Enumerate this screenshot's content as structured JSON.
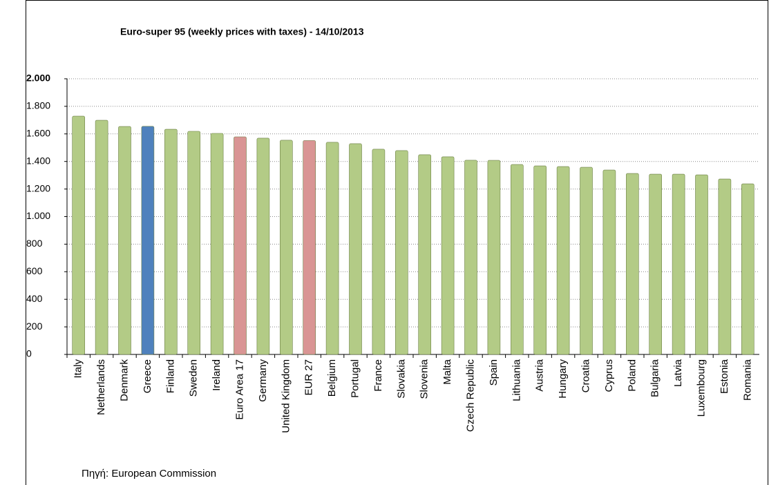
{
  "chart_data": {
    "type": "bar",
    "title": "Euro-super 95 (weekly prices with taxes) - 14/10/2013",
    "source": "Πηγή: European Commission",
    "categories": [
      "Italy",
      "Netherlands",
      "Denmark",
      "Greece",
      "Finland",
      "Sweden",
      "Ireland",
      "Euro Area 17",
      "Germany",
      "United Kingdom",
      "EUR 27",
      "Belgium",
      "Portugal",
      "France",
      "Slovakia",
      "Slovenia",
      "Malta",
      "Czech Republic",
      "Spain",
      "Lithuania",
      "Austria",
      "Hungary",
      "Croatia",
      "Cyprus",
      "Poland",
      "Bulgaria",
      "Latvia",
      "Luxembourg",
      "Estonia",
      "Romania"
    ],
    "values": [
      1729,
      1699,
      1654,
      1655,
      1634,
      1619,
      1604,
      1579,
      1569,
      1554,
      1552,
      1539,
      1529,
      1489,
      1479,
      1449,
      1434,
      1409,
      1408,
      1378,
      1368,
      1363,
      1358,
      1338,
      1313,
      1308,
      1308,
      1303,
      1273,
      1238
    ],
    "colors": [
      "#b3cb86",
      "#b3cb86",
      "#b3cb86",
      "#4f81bd",
      "#b3cb86",
      "#b3cb86",
      "#b3cb86",
      "#d99594",
      "#b3cb86",
      "#b3cb86",
      "#d99594",
      "#b3cb86",
      "#b3cb86",
      "#b3cb86",
      "#b3cb86",
      "#b3cb86",
      "#b3cb86",
      "#b3cb86",
      "#b3cb86",
      "#b3cb86",
      "#b3cb86",
      "#b3cb86",
      "#b3cb86",
      "#b3cb86",
      "#b3cb86",
      "#b3cb86",
      "#b3cb86",
      "#b3cb86",
      "#b3cb86",
      "#b3cb86"
    ],
    "ylim": [
      0,
      2000
    ],
    "yticks": [
      0,
      200,
      400,
      600,
      800,
      {
        "value": 1000,
        "label": "1.000"
      },
      {
        "value": 1200,
        "label": "1.200"
      },
      {
        "value": 1400,
        "label": "1.400"
      },
      {
        "value": 1600,
        "label": "1.600"
      },
      {
        "value": 1800,
        "label": "1.800"
      },
      {
        "value": 2000,
        "label": "2.000"
      }
    ],
    "grid": true
  }
}
